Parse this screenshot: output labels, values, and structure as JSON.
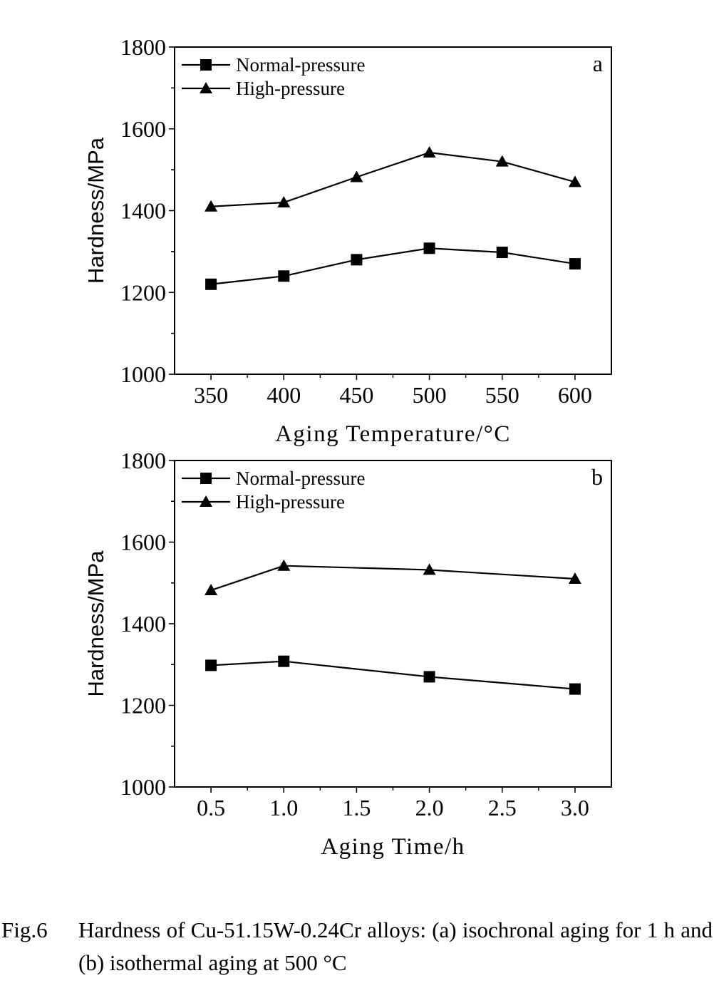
{
  "chart_data": [
    {
      "type": "line",
      "panel_label": "a",
      "xlabel": "Aging Temperature/°C",
      "ylabel": "Hardness/MPa",
      "x": [
        350,
        400,
        450,
        500,
        550,
        600
      ],
      "xticks": [
        "350",
        "400",
        "450",
        "500",
        "550",
        "600"
      ],
      "xlim": [
        325,
        625
      ],
      "ylim": [
        1000,
        1800
      ],
      "yticks": [
        "1000",
        "1200",
        "1400",
        "1600",
        "1800"
      ],
      "series": [
        {
          "name": "Normal-pressure",
          "marker": "square",
          "values": [
            1220,
            1240,
            1280,
            1308,
            1298,
            1270
          ]
        },
        {
          "name": "High-pressure",
          "marker": "triangle",
          "values": [
            1410,
            1420,
            1482,
            1542,
            1520,
            1470
          ]
        }
      ],
      "legend": "top-left",
      "grid": false
    },
    {
      "type": "line",
      "panel_label": "b",
      "xlabel": "Aging Time/h",
      "ylabel": "Hardness/MPa",
      "x": [
        0.5,
        1.0,
        2.0,
        3.0
      ],
      "xticks": [
        "0.5",
        "1.0",
        "1.5",
        "2.0",
        "2.5",
        "3.0"
      ],
      "xtick_values": [
        0.5,
        1.0,
        1.5,
        2.0,
        2.5,
        3.0
      ],
      "xlim": [
        0.25,
        3.25
      ],
      "ylim": [
        1000,
        1800
      ],
      "yticks": [
        "1000",
        "1200",
        "1400",
        "1600",
        "1800"
      ],
      "series": [
        {
          "name": "Normal-pressure",
          "marker": "square",
          "values": [
            1298,
            1308,
            1270,
            1240
          ]
        },
        {
          "name": "High-pressure",
          "marker": "triangle",
          "values": [
            1482,
            1542,
            1532,
            1510
          ]
        }
      ],
      "legend": "top-left",
      "grid": false
    }
  ],
  "caption": {
    "number": "Fig.6",
    "text": "Hardness of Cu-51.15W-0.24Cr alloys: (a) isochronal aging for 1 h and (b) isothermal aging at 500 °C"
  }
}
